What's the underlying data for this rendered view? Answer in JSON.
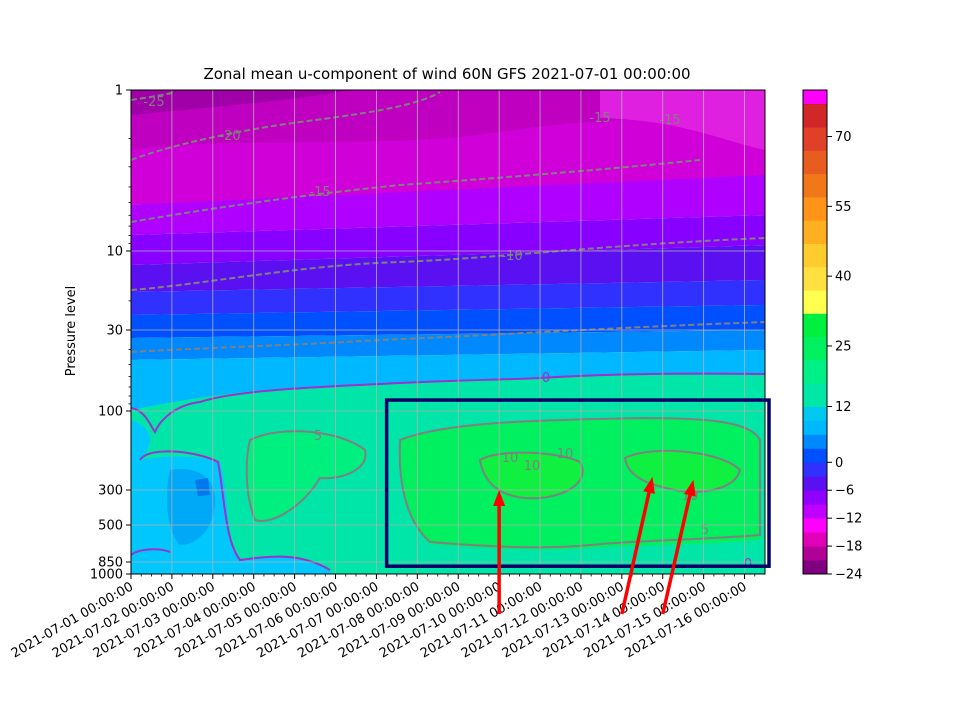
{
  "chart_data": {
    "type": "heatmap",
    "title": "Zonal mean u-component of wind 60N GFS 2021-07-01 00:00:00",
    "ylabel": "Pressure level",
    "xlabel": "",
    "x_tick_labels": [
      "2021-07-01 00:00:00",
      "2021-07-02 00:00:00",
      "2021-07-03 00:00:00",
      "2021-07-04 00:00:00",
      "2021-07-05 00:00:00",
      "2021-07-06 00:00:00",
      "2021-07-07 00:00:00",
      "2021-07-08 00:00:00",
      "2021-07-09 00:00:00",
      "2021-07-10 00:00:00",
      "2021-07-11 00:00:00",
      "2021-07-12 00:00:00",
      "2021-07-13 00:00:00",
      "2021-07-14 00:00:00",
      "2021-07-15 00:00:00",
      "2021-07-16 00:00:00"
    ],
    "xlim": [
      "2021-07-01 00:00:00",
      "2021-07-16 12:00:00"
    ],
    "y_tick_labels": [
      "1",
      "10",
      "30",
      "100",
      "300",
      "500",
      "850",
      "1000"
    ],
    "y_ticks": [
      1,
      10,
      30,
      100,
      300,
      500,
      850,
      1000
    ],
    "ylim": [
      1000,
      1
    ],
    "yscale": "log",
    "grid": true,
    "colorbar": {
      "ticks": [
        70,
        55,
        40,
        25,
        12,
        0,
        -6,
        -12,
        -18,
        -24
      ],
      "tick_labels": [
        "70",
        "55",
        "40",
        "25",
        "12",
        "0",
        "−6",
        "−12",
        "−18",
        "−24"
      ],
      "range": [
        -24,
        80
      ],
      "levels": [
        -24,
        -21,
        -18,
        -15,
        -12,
        -9,
        -6,
        -3,
        0,
        3,
        6,
        9,
        12,
        17,
        22,
        27,
        32,
        37,
        42,
        47,
        52,
        57,
        62,
        67,
        72,
        77,
        80
      ],
      "colors": [
        "#800080",
        "#b00098",
        "#e000b8",
        "#ff00ff",
        "#c000ff",
        "#9000ff",
        "#5a10f0",
        "#3030ff",
        "#0050ff",
        "#0088ff",
        "#00b8ff",
        "#00c8f0",
        "#00e8a8",
        "#00f088",
        "#00f060",
        "#00f040",
        "#ffff50",
        "#ffe040",
        "#ffcc30",
        "#ffb020",
        "#ff9418",
        "#f07818",
        "#e85c20",
        "#e04028",
        "#d02828",
        "#c01818",
        "#a00010",
        "#ff00cc",
        "#ff33ee",
        "#ff00ff"
      ]
    },
    "contours": [
      {
        "value": -25,
        "label": "-25",
        "style": "dashed",
        "color": "#808080"
      },
      {
        "value": -20,
        "label": "-20",
        "style": "dashed",
        "color": "#808080"
      },
      {
        "value": -15,
        "label": "-15",
        "style": "dashed",
        "color": "#808080"
      },
      {
        "value": -10,
        "label": "-10",
        "style": "dashed",
        "color": "#808080"
      },
      {
        "value": -5,
        "label": "-5",
        "style": "dashed",
        "color": "#808080"
      },
      {
        "value": 0,
        "label": "0",
        "style": "solid",
        "color": "#9933cc"
      },
      {
        "value": 5,
        "label": "5",
        "style": "solid",
        "color": "#808080"
      },
      {
        "value": 10,
        "label": "10",
        "style": "solid",
        "color": "#808080"
      }
    ],
    "annotations": [
      {
        "type": "rectangle",
        "color": "#000066",
        "x_start": "2021-07-07 06:00:00",
        "x_end": "2021-07-16 12:00:00",
        "y_top": 85,
        "y_bottom": 900
      },
      {
        "type": "arrow",
        "color": "#ff0000",
        "from": [
          "2021-07-10 00:00:00",
          1000
        ],
        "to": [
          "2021-07-10 00:00:00",
          300
        ]
      },
      {
        "type": "arrow",
        "color": "#ff0000",
        "from": [
          "2021-07-13 00:00:00",
          1000
        ],
        "to": [
          "2021-07-13 18:00:00",
          250
        ]
      },
      {
        "type": "arrow",
        "color": "#ff0000",
        "from": [
          "2021-07-14 00:00:00",
          1000
        ],
        "to": [
          "2021-07-14 18:00:00",
          260
        ]
      }
    ]
  }
}
